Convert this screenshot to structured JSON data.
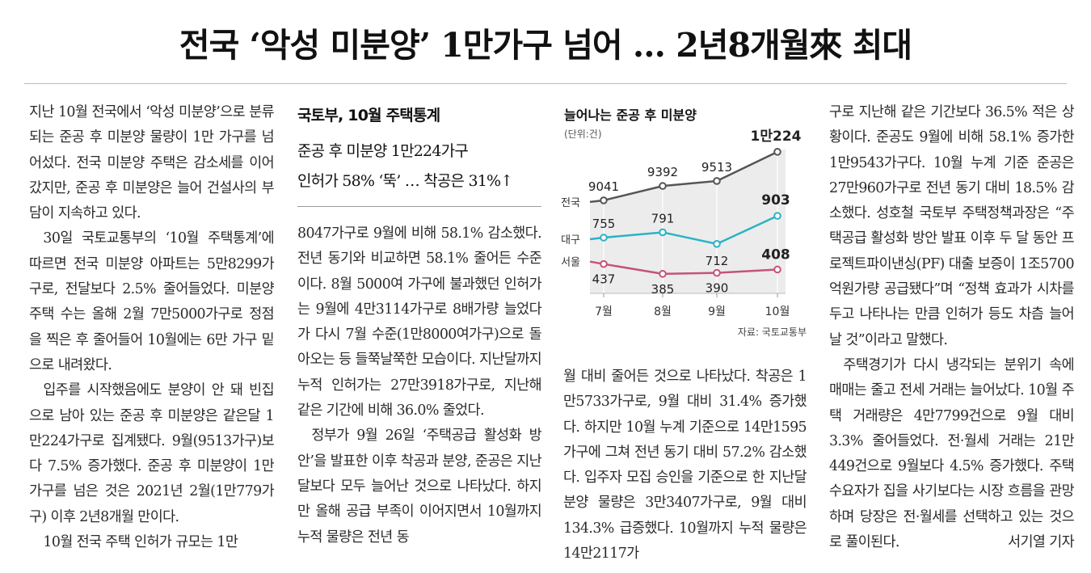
{
  "headline": "전국 ‘악성 미분양’ 1만가구 넘어 … 2년8개월來 최대",
  "sidebar": {
    "title": "국토부, 10월 주택통계",
    "sub1": "준공 후 미분양 1만224가구",
    "sub2": "인허가 58% ‘뚝’ … 착공은 31%↑"
  },
  "columns": {
    "col1": [
      "지난 10월 전국에서 ‘악성 미분양’으로 분류되는 준공 후 미분양 물량이 1만 가구를 넘어섰다. 전국 미분양 주택은 감소세를 이어갔지만, 준공 후 미분양은 늘어 건설사의 부담이 지속하고 있다.",
      "30일 국토교통부의 ‘10월 주택통계’에 따르면 전국 미분양 아파트는 5만8299가구로, 전달보다 2.5% 줄어들었다. 미분양 주택 수는 올해 2월 7만5000가구로 정점을 찍은 후 줄어들어 10월에는 6만 가구 밑으로 내려왔다.",
      "입주를 시작했음에도 분양이 안 돼 빈집으로 남아 있는 준공 후 미분양은 같은달 1만224가구로 집계됐다. 9월(9513가구)보다 7.5% 증가했다. 준공 후 미분양이 1만 가구를 넘은 것은 2021년 2월(1만779가구) 이후 2년8개월 만이다.",
      "10월 전국 주택 인허가 규모는 1만"
    ],
    "col2": [
      "8047가구로 9월에 비해 58.1% 감소했다. 전년 동기와 비교하면 58.1% 줄어든 수준이다. 8월 5000여 가구에 불과했던 인허가는 9월에 4만3114가구로 8배가량 늘었다가 다시 7월 수준(1만8000여가구)으로 돌아오는 등 들쭉날쭉한 모습이다. 지난달까지 누적 인허가는 27만3918가구로, 지난해 같은 기간에 비해 36.0% 줄었다.",
      "정부가 9월 26일 ‘주택공급 활성화 방안’을 발표한 이후 착공과 분양, 준공은 지난달보다 모두 늘어난 것으로 나타났다. 하지만 올해 공급 부족이 이어지면서 10월까지 누적 물량은 전년 동"
    ],
    "col3": [
      "월 대비 줄어든 것으로 나타났다. 착공은 1만5733가구로, 9월 대비 31.4% 증가했다. 하지만 10월 누계 기준으로 14만1595가구에 그쳐 전년 동기 대비 57.2% 감소했다. 입주자 모집 승인을 기준으로 한 지난달 분양 물량은 3만3407가구로, 9월 대비 134.3% 급증했다. 10월까지 누적 물량은 14만2117가"
    ],
    "col4": [
      "구로 지난해 같은 기간보다 36.5% 적은 상황이다. 준공도 9월에 비해 58.1% 증가한 1만9543가구다. 10월 누계 기준 준공은 27만960가구로 전년 동기 대비 18.5% 감소했다. 성호철 국토부 주택정책과장은 “주택공급 활성화 방안 발표 이후 두 달 동안 프로젝트파이낸싱(PF) 대출 보증이 1조5700억원가량 공급됐다”며 “정책 효과가 시차를 두고 나타나는 만큼 인허가 등도 차츰 늘어날 것”이라고 말했다.",
      "주택경기가 다시 냉각되는 분위기 속에 매매는 줄고 전세 거래는 늘어났다. 10월 주택 거래량은 4만7799건으로 9월 대비 3.3% 줄어들었다. 전·월세 거래는 21만449건으로 9월보다 4.5% 증가했다. 주택 수요자가 집을 사기보다는 시장 흐름을 관망하며 당장은 전·월세를 선택하고 있는 것으로 풀이된다."
    ],
    "byline": "서기열 기자"
  },
  "chart_data": {
    "type": "line",
    "title": "늘어나는 준공 후 미분양",
    "unit": "(단위:건)",
    "source": "자료: 국토교통부",
    "categories": [
      "7월",
      "8월",
      "9월",
      "10월"
    ],
    "series": [
      {
        "name": "전국",
        "values": [
          9041,
          9392,
          9513,
          10224
        ],
        "labels": [
          "9041",
          "9392",
          "9513",
          "1만224"
        ],
        "color": "#555555"
      },
      {
        "name": "대구",
        "values": [
          755,
          791,
          712,
          903
        ],
        "labels": [
          "755",
          "791",
          "712",
          "903"
        ],
        "color": "#2ab3c4"
      },
      {
        "name": "서울",
        "values": [
          437,
          385,
          390,
          408
        ],
        "labels": [
          "437",
          "385",
          "390",
          "408"
        ],
        "color": "#c4537a"
      }
    ]
  }
}
